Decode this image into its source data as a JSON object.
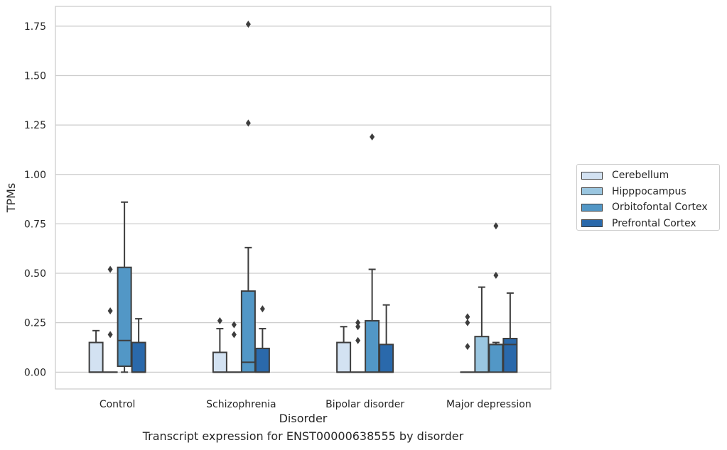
{
  "chart_data": {
    "type": "boxplot",
    "xlabel": "Disorder",
    "ylabel": "TPMs",
    "ylim": [
      -0.085,
      1.85
    ],
    "yticks": [
      "0.00",
      "0.25",
      "0.50",
      "0.75",
      "1.00",
      "1.25",
      "1.50",
      "1.75"
    ],
    "grid": true,
    "legend_position": "right",
    "categories": [
      "Control",
      "Schizophrenia",
      "Bipolar disorder",
      "Major depression"
    ],
    "series": [
      {
        "name": "Cerebellum",
        "color": "#d3e2f2",
        "boxes": [
          {
            "q1": 0.0,
            "median": 0.0,
            "q3": 0.15,
            "whislo": 0.0,
            "whishi": 0.21,
            "fliers": []
          },
          {
            "q1": 0.0,
            "median": 0.0,
            "q3": 0.1,
            "whislo": 0.0,
            "whishi": 0.22,
            "fliers": [
              0.26
            ]
          },
          {
            "q1": 0.0,
            "median": 0.0,
            "q3": 0.15,
            "whislo": 0.0,
            "whishi": 0.23,
            "fliers": []
          },
          {
            "q1": 0.0,
            "median": 0.0,
            "q3": 0.0,
            "whislo": 0.0,
            "whishi": 0.0,
            "fliers": [
              0.13,
              0.25,
              0.28
            ]
          }
        ]
      },
      {
        "name": "Hipppocampus",
        "color": "#9ac6e0",
        "boxes": [
          {
            "q1": 0.0,
            "median": 0.0,
            "q3": 0.0,
            "whislo": 0.0,
            "whishi": 0.0,
            "fliers": [
              0.19,
              0.31,
              0.52
            ]
          },
          {
            "q1": 0.0,
            "median": 0.0,
            "q3": 0.0,
            "whislo": 0.0,
            "whishi": 0.0,
            "fliers": [
              0.19,
              0.24
            ]
          },
          {
            "q1": 0.0,
            "median": 0.0,
            "q3": 0.0,
            "whislo": 0.0,
            "whishi": 0.0,
            "fliers": [
              0.16,
              0.23,
              0.25
            ]
          },
          {
            "q1": 0.0,
            "median": 0.0,
            "q3": 0.18,
            "whislo": 0.0,
            "whishi": 0.43,
            "fliers": []
          }
        ]
      },
      {
        "name": "Orbitofontal Cortex",
        "color": "#5297c6",
        "boxes": [
          {
            "q1": 0.03,
            "median": 0.16,
            "q3": 0.53,
            "whislo": 0.0,
            "whishi": 0.86,
            "fliers": []
          },
          {
            "q1": 0.0,
            "median": 0.05,
            "q3": 0.41,
            "whislo": 0.0,
            "whishi": 0.63,
            "fliers": [
              1.26,
              1.76
            ]
          },
          {
            "q1": 0.0,
            "median": 0.0,
            "q3": 0.26,
            "whislo": 0.0,
            "whishi": 0.52,
            "fliers": [
              1.19
            ]
          },
          {
            "q1": 0.0,
            "median": 0.14,
            "q3": 0.14,
            "whislo": 0.0,
            "whishi": 0.15,
            "fliers": [
              0.49,
              0.74
            ]
          }
        ]
      },
      {
        "name": "Prefrontal Cortex",
        "color": "#2a69ab",
        "boxes": [
          {
            "q1": 0.0,
            "median": 0.0,
            "q3": 0.15,
            "whislo": 0.0,
            "whishi": 0.27,
            "fliers": []
          },
          {
            "q1": 0.0,
            "median": 0.0,
            "q3": 0.12,
            "whislo": 0.0,
            "whishi": 0.22,
            "fliers": [
              0.32
            ]
          },
          {
            "q1": 0.0,
            "median": 0.0,
            "q3": 0.14,
            "whislo": 0.0,
            "whishi": 0.34,
            "fliers": []
          },
          {
            "q1": 0.0,
            "median": 0.14,
            "q3": 0.17,
            "whislo": 0.0,
            "whishi": 0.4,
            "fliers": []
          }
        ]
      }
    ]
  },
  "caption": "Transcript expression for ENST00000638555 by disorder"
}
